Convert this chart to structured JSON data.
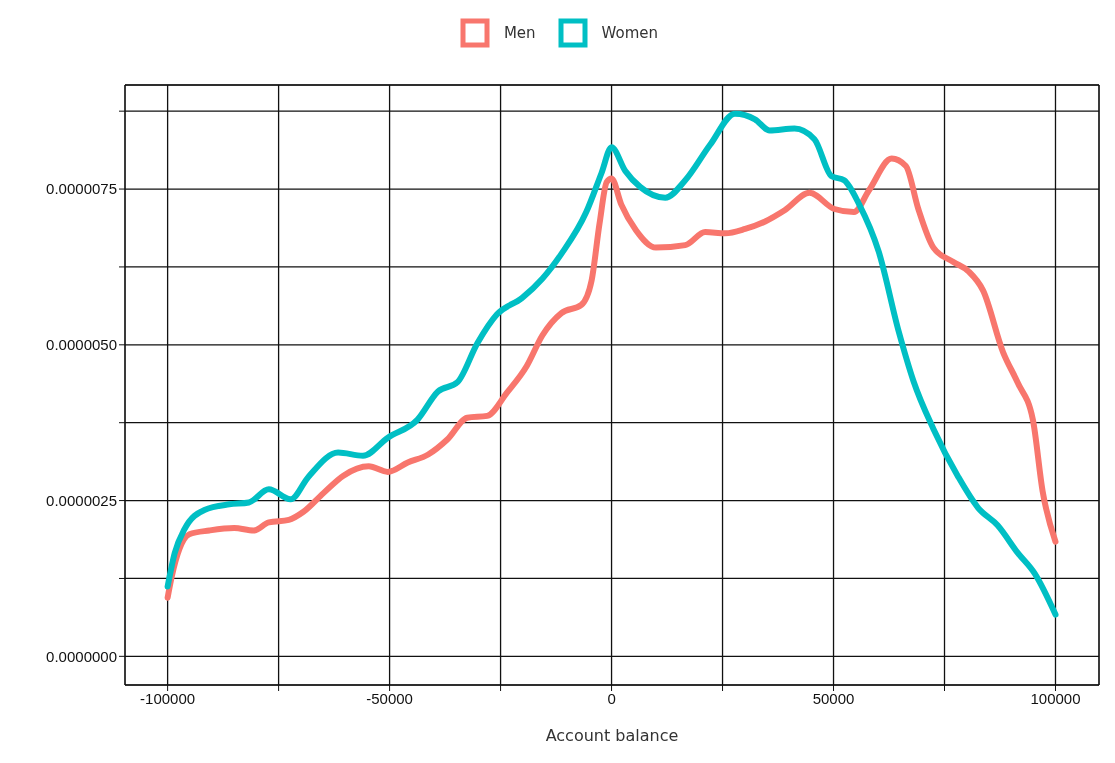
{
  "chart_data": {
    "type": "line",
    "xlabel": "Account balance",
    "legend": "top",
    "grid": true,
    "xlim": [
      -109600,
      109800
    ],
    "ylim": [
      -4.6e-07,
      9.17e-06
    ],
    "xticks": [
      -100000,
      {
        "value": -75000,
        "label": null
      },
      -50000,
      {
        "value": -25000,
        "label": null
      },
      0,
      {
        "value": 25000,
        "label": null
      },
      50000,
      {
        "value": 75000,
        "label": null
      },
      100000
    ],
    "yticks": [
      {
        "value": 0,
        "label": "0.0000000"
      },
      {
        "value": 1.25e-06,
        "label": null
      },
      {
        "value": 2.5e-06,
        "label": "0.0000025"
      },
      {
        "value": 3.75e-06,
        "label": null
      },
      {
        "value": 5e-06,
        "label": "0.0000050"
      },
      {
        "value": 6.25e-06,
        "label": null
      },
      {
        "value": 7.5e-06,
        "label": "0.0000075"
      },
      {
        "value": 8.75e-06,
        "label": null
      }
    ],
    "series": [
      {
        "name": "Men",
        "color": "#f8766d",
        "x": [
          -100000,
          -99100,
          -97300,
          -95100,
          -90600,
          -85000,
          -80600,
          -77200,
          -72700,
          -69400,
          -64900,
          -60400,
          -54700,
          -50400,
          -45900,
          -41300,
          -37000,
          -32500,
          -28000,
          -23600,
          -19100,
          -15600,
          -11300,
          -6800,
          -4500,
          -2700,
          -1100,
          0,
          2200,
          5500,
          10000,
          16600,
          21100,
          25600,
          30100,
          34600,
          39000,
          44600,
          50200,
          54600,
          58000,
          63100,
          66300,
          69100,
          72500,
          77000,
          80400,
          83700,
          88200,
          91500,
          94900,
          97100,
          100000
        ],
        "values": [
          9.4e-07,
          1.27e-06,
          1.73e-06,
          1.96e-06,
          2.02e-06,
          2.06e-06,
          2.02e-06,
          2.15e-06,
          2.19e-06,
          2.32e-06,
          2.62e-06,
          2.9e-06,
          3.05e-06,
          2.96e-06,
          3.11e-06,
          3.24e-06,
          3.48e-06,
          3.83e-06,
          3.86e-06,
          4.23e-06,
          4.66e-06,
          5.15e-06,
          5.51e-06,
          5.64e-06,
          6.03e-06,
          6.95e-06,
          7.61e-06,
          7.67e-06,
          7.25e-06,
          6.84e-06,
          6.56e-06,
          6.6e-06,
          6.81e-06,
          6.79e-06,
          6.86e-06,
          6.98e-06,
          7.16e-06,
          7.44e-06,
          7.18e-06,
          7.13e-06,
          7.48e-06,
          7.99e-06,
          7.87e-06,
          7.18e-06,
          6.56e-06,
          6.33e-06,
          6.18e-06,
          5.87e-06,
          4.88e-06,
          4.39e-06,
          3.8e-06,
          2.65e-06,
          1.84e-06
        ]
      },
      {
        "name": "Women",
        "color": "#00bfc4",
        "x": [
          -100000,
          -98400,
          -96200,
          -91700,
          -86100,
          -81700,
          -77200,
          -72300,
          -68300,
          -61600,
          -56000,
          -50400,
          -43700,
          -39100,
          -34700,
          -30200,
          -25800,
          -20200,
          -15600,
          -11300,
          -5700,
          -2300,
          0,
          3100,
          6500,
          12100,
          16600,
          22200,
          27800,
          32300,
          35600,
          41200,
          45700,
          49500,
          52400,
          55800,
          60200,
          64700,
          68000,
          72500,
          78100,
          82600,
          87000,
          91500,
          95300,
          100000
        ],
        "values": [
          1.12e-06,
          1.66e-06,
          2.04e-06,
          2.35e-06,
          2.44e-06,
          2.47e-06,
          2.68e-06,
          2.52e-06,
          2.88e-06,
          3.27e-06,
          3.22e-06,
          3.51e-06,
          3.8e-06,
          4.25e-06,
          4.4e-06,
          5.03e-06,
          5.49e-06,
          5.75e-06,
          6.06e-06,
          6.46e-06,
          7.13e-06,
          7.75e-06,
          8.17e-06,
          7.79e-06,
          7.53e-06,
          7.36e-06,
          7.64e-06,
          8.21e-06,
          8.71e-06,
          8.62e-06,
          8.44e-06,
          8.47e-06,
          8.3e-06,
          7.71e-06,
          7.64e-06,
          7.25e-06,
          6.49e-06,
          5.21e-06,
          4.42e-06,
          3.65e-06,
          2.88e-06,
          2.38e-06,
          2.1e-06,
          1.66e-06,
          1.33e-06,
          6.7e-07
        ]
      }
    ]
  }
}
